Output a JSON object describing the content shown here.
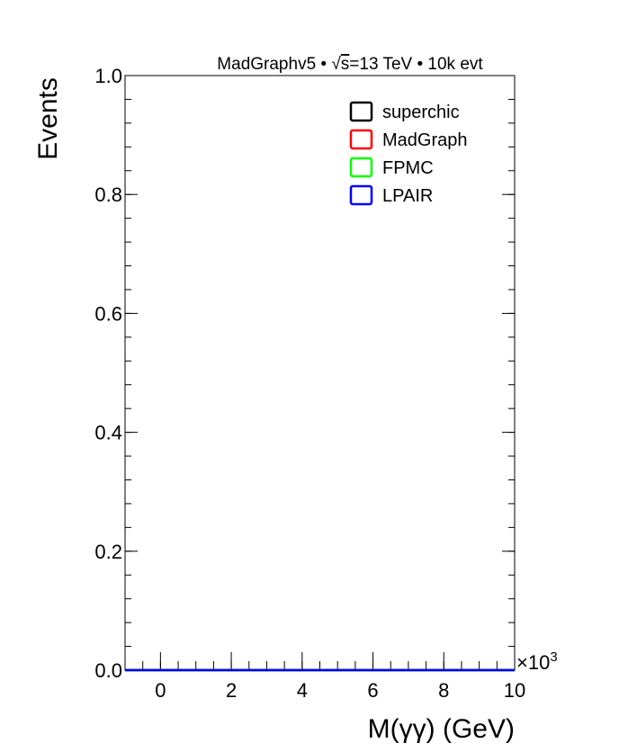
{
  "chart_data": {
    "type": "line",
    "header": {
      "generator": "MadGraphv5",
      "sep": "•",
      "sqrt": "√",
      "energy_var": "s",
      "energy_val": "=13 TeV",
      "events": "10k evt"
    },
    "xlabel": "M(γγ) (GeV)",
    "ylabel": "Events",
    "x_multiplier_base": "×10",
    "x_multiplier_exp": "3",
    "xlim": [
      -1,
      10
    ],
    "ylim": [
      0,
      1
    ],
    "x_ticks": [
      0,
      2,
      4,
      6,
      8,
      10
    ],
    "y_ticks": [
      0.0,
      0.2,
      0.4,
      0.6,
      0.8,
      1.0
    ],
    "x_tick_labels": [
      "0",
      "2",
      "4",
      "6",
      "8",
      "10"
    ],
    "y_tick_labels": [
      "0.0",
      "0.2",
      "0.4",
      "0.6",
      "0.8",
      "1.0"
    ],
    "legend_position": "top-right",
    "series": [
      {
        "name": "superchic",
        "color": "#000000",
        "x": [
          -1,
          10
        ],
        "y": [
          0,
          0
        ]
      },
      {
        "name": "MadGraph",
        "color": "#ff0000",
        "x": [
          -1,
          10
        ],
        "y": [
          0,
          0
        ]
      },
      {
        "name": "FPMC",
        "color": "#00ff00",
        "x": [
          -1,
          10
        ],
        "y": [
          0,
          0
        ]
      },
      {
        "name": "LPAIR",
        "color": "#0000ff",
        "x": [
          -1,
          10
        ],
        "y": [
          0,
          0
        ]
      }
    ]
  }
}
